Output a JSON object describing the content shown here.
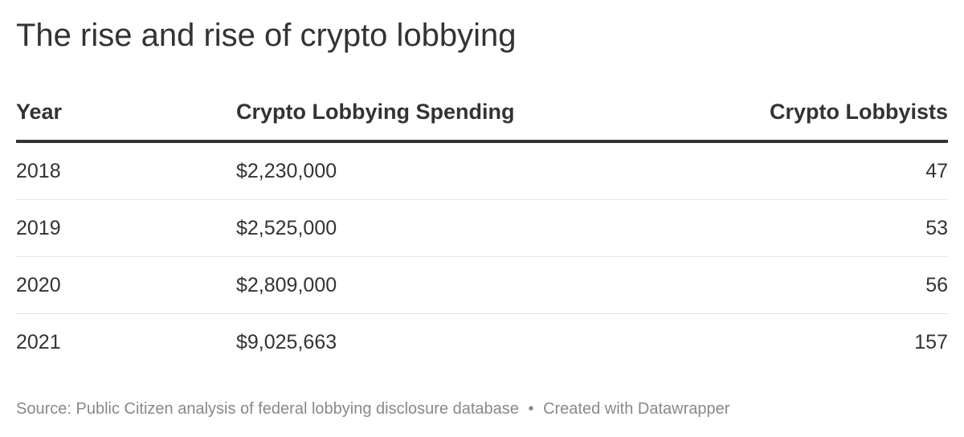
{
  "header": {
    "title": "The rise and rise of crypto lobbying"
  },
  "chart_data": {
    "type": "table",
    "title": "The rise and rise of crypto lobbying",
    "columns": [
      "Year",
      "Crypto Lobbying Spending",
      "Crypto Lobbyists"
    ],
    "rows": [
      [
        "2018",
        "$2,230,000",
        "47"
      ],
      [
        "2019",
        "$2,525,000",
        "53"
      ],
      [
        "2020",
        "$2,809,000",
        "56"
      ],
      [
        "2021",
        "$9,025,663",
        "157"
      ]
    ],
    "x": [
      2018,
      2019,
      2020,
      2021
    ],
    "series": [
      {
        "name": "Crypto Lobbying Spending",
        "values": [
          2230000,
          2525000,
          2809000,
          9025663
        ]
      },
      {
        "name": "Crypto Lobbyists",
        "values": [
          47,
          53,
          56,
          157
        ]
      }
    ]
  },
  "table": {
    "headers": {
      "year": "Year",
      "spending": "Crypto Lobbying Spending",
      "lobbyists": "Crypto Lobbyists"
    },
    "rows": [
      {
        "year": "2018",
        "spending": "$2,230,000",
        "lobbyists": "47"
      },
      {
        "year": "2019",
        "spending": "$2,525,000",
        "lobbyists": "53"
      },
      {
        "year": "2020",
        "spending": "$2,809,000",
        "lobbyists": "56"
      },
      {
        "year": "2021",
        "spending": "$9,025,663",
        "lobbyists": "157"
      }
    ]
  },
  "footer": {
    "source": "Source: Public Citizen analysis of federal lobbying disclosure database",
    "separator": "•",
    "credit": "Created with Datawrapper"
  },
  "colors": {
    "text": "#333333",
    "header_rule": "#333333",
    "row_divider": "#e4e4e4",
    "notes": "#888888",
    "background": "#ffffff"
  }
}
